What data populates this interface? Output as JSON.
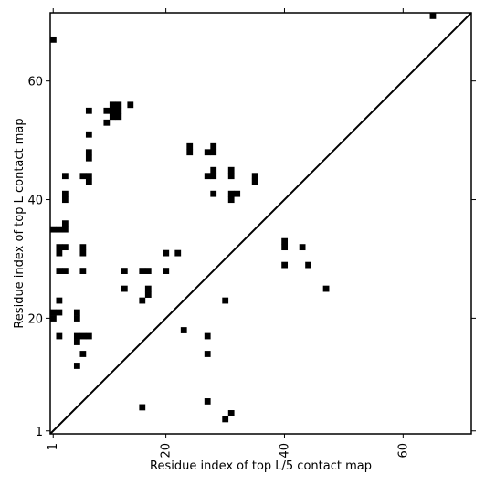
{
  "chart_data": {
    "type": "heatmap",
    "title": "",
    "xlabel": "Residue index of top L/5 contact map",
    "ylabel": "Residue index of top L contact map",
    "xlim": [
      0.5,
      71.5
    ],
    "ylim": [
      0.5,
      71.5
    ],
    "x_ticks": [
      1,
      20,
      40,
      60
    ],
    "y_ticks": [
      1,
      20,
      40,
      60
    ],
    "x_tick_labels": [
      "1",
      "20",
      "40",
      "60"
    ],
    "y_tick_labels": [
      "1",
      "20",
      "40",
      "60"
    ],
    "diagonal": true,
    "cell_color": "#000000",
    "upper_triangle_contacts": [
      [
        65,
        71
      ]
    ],
    "lower_triangle_contacts": [
      [
        1,
        67
      ],
      [
        1,
        35
      ],
      [
        2,
        35
      ],
      [
        3,
        35
      ],
      [
        3,
        36
      ],
      [
        3,
        40
      ],
      [
        3,
        41
      ],
      [
        3,
        44
      ],
      [
        2,
        32
      ],
      [
        3,
        32
      ],
      [
        2,
        31
      ],
      [
        2,
        28
      ],
      [
        3,
        28
      ],
      [
        2,
        23
      ],
      [
        1,
        21
      ],
      [
        2,
        21
      ],
      [
        1,
        20
      ],
      [
        2,
        17
      ],
      [
        6,
        31
      ],
      [
        6,
        32
      ],
      [
        6,
        28
      ],
      [
        6,
        44
      ],
      [
        7,
        44
      ],
      [
        7,
        43
      ],
      [
        7,
        47
      ],
      [
        7,
        48
      ],
      [
        7,
        51
      ],
      [
        7,
        55
      ],
      [
        5,
        20
      ],
      [
        5,
        21
      ],
      [
        5,
        17
      ],
      [
        6,
        17
      ],
      [
        7,
        17
      ],
      [
        5,
        16
      ],
      [
        6,
        14
      ],
      [
        5,
        12
      ],
      [
        10,
        53
      ],
      [
        10,
        55
      ],
      [
        11,
        55
      ],
      [
        11,
        54
      ],
      [
        11,
        56
      ],
      [
        12,
        56
      ],
      [
        12,
        55
      ],
      [
        12,
        54
      ],
      [
        14,
        56
      ],
      [
        13,
        28
      ],
      [
        13,
        25
      ],
      [
        16,
        28
      ],
      [
        17,
        28
      ],
      [
        17,
        25
      ],
      [
        17,
        24
      ],
      [
        16,
        23
      ],
      [
        16,
        5
      ],
      [
        20,
        31
      ],
      [
        20,
        28
      ],
      [
        22,
        31
      ],
      [
        24,
        48
      ],
      [
        24,
        49
      ],
      [
        23,
        18
      ],
      [
        27,
        48
      ],
      [
        28,
        48
      ],
      [
        28,
        49
      ],
      [
        28,
        45
      ],
      [
        28,
        44
      ],
      [
        27,
        44
      ],
      [
        28,
        41
      ],
      [
        27,
        17
      ],
      [
        27,
        14
      ],
      [
        27,
        6
      ],
      [
        30,
        23
      ],
      [
        31,
        45
      ],
      [
        31,
        44
      ],
      [
        31,
        41
      ],
      [
        32,
        41
      ],
      [
        31,
        40
      ],
      [
        30,
        3
      ],
      [
        31,
        4
      ],
      [
        35,
        43
      ],
      [
        35,
        44
      ],
      [
        40,
        33
      ],
      [
        40,
        32
      ],
      [
        40,
        29
      ],
      [
        43,
        32
      ],
      [
        44,
        29
      ],
      [
        47,
        25
      ]
    ]
  }
}
